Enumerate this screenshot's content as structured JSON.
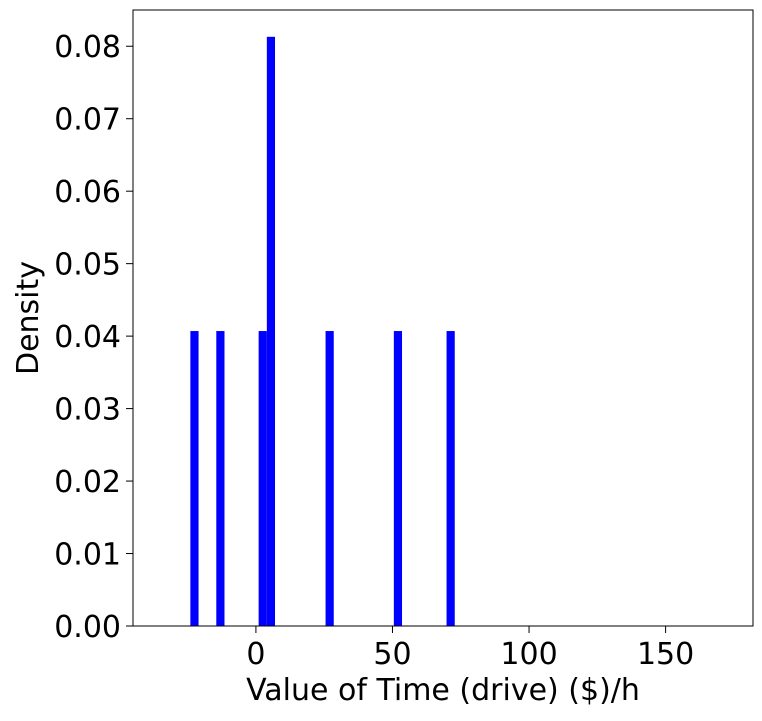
{
  "chart_data": {
    "type": "bar",
    "title": "",
    "xlabel": "Value of Time (drive) ($)/h",
    "ylabel": "Density",
    "xlim": [
      -45,
      182
    ],
    "ylim": [
      0,
      0.085
    ],
    "x_ticks": [
      {
        "value": 0,
        "label": "0"
      },
      {
        "value": 50,
        "label": "50"
      },
      {
        "value": 100,
        "label": "100"
      },
      {
        "value": 150,
        "label": "150"
      }
    ],
    "y_ticks": [
      {
        "value": 0.0,
        "label": "0.00"
      },
      {
        "value": 0.01,
        "label": "0.01"
      },
      {
        "value": 0.02,
        "label": "0.02"
      },
      {
        "value": 0.03,
        "label": "0.03"
      },
      {
        "value": 0.04,
        "label": "0.04"
      },
      {
        "value": 0.05,
        "label": "0.05"
      },
      {
        "value": 0.06,
        "label": "0.06"
      },
      {
        "value": 0.07,
        "label": "0.07"
      },
      {
        "value": 0.08,
        "label": "0.08"
      }
    ],
    "bars": [
      {
        "x_start": -24.0,
        "x_end": -21.0,
        "value": 0.0407
      },
      {
        "x_start": -14.5,
        "x_end": -11.5,
        "value": 0.0407
      },
      {
        "x_start": 1.0,
        "x_end": 4.0,
        "value": 0.0407
      },
      {
        "x_start": 4.0,
        "x_end": 7.0,
        "value": 0.0813
      },
      {
        "x_start": 25.5,
        "x_end": 28.5,
        "value": 0.0407
      },
      {
        "x_start": 50.5,
        "x_end": 53.5,
        "value": 0.0407
      },
      {
        "x_start": 69.8,
        "x_end": 72.8,
        "value": 0.0407
      }
    ],
    "bar_color": "#0000ff",
    "grid": false,
    "legend": "none"
  }
}
